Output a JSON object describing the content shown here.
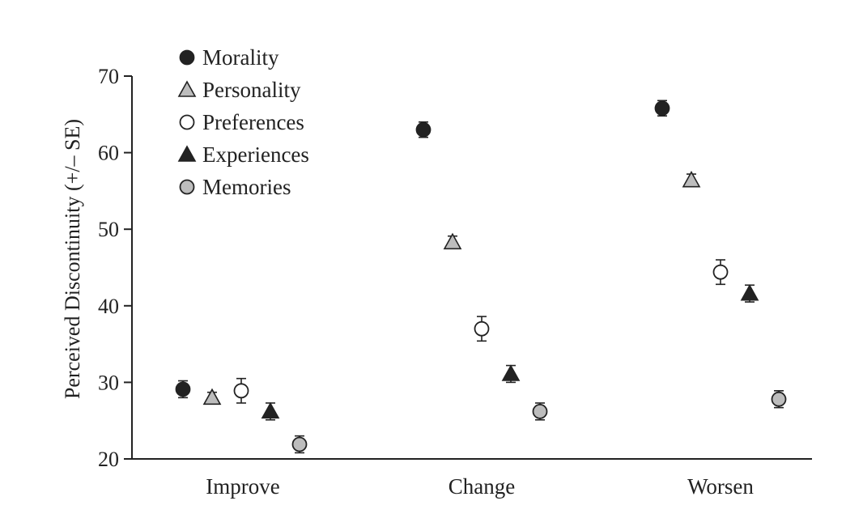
{
  "chart_data": {
    "type": "scatter",
    "title": "",
    "ylabel": "Perceived Discontinuity (+/– SE)",
    "xlabel": "",
    "ylim": [
      20,
      70
    ],
    "yticks": [
      20,
      30,
      40,
      50,
      60,
      70
    ],
    "categories": [
      "Improve",
      "Change",
      "Worsen"
    ],
    "grid": false,
    "legend_position": "top-left",
    "series": [
      {
        "name": "Morality",
        "marker": "circle",
        "fill": "#222222",
        "values": [
          29.1,
          63.0,
          65.8
        ],
        "se": [
          1.1,
          1.0,
          1.0
        ]
      },
      {
        "name": "Personality",
        "marker": "triangle",
        "fill": "#bdbdbd",
        "values": [
          28.0,
          48.3,
          56.4
        ],
        "se": [
          0.7,
          0.8,
          0.8
        ]
      },
      {
        "name": "Preferences",
        "marker": "circle",
        "fill": "#ffffff",
        "values": [
          28.9,
          37.0,
          44.4
        ],
        "se": [
          1.6,
          1.6,
          1.6
        ]
      },
      {
        "name": "Experiences",
        "marker": "triangle",
        "fill": "#222222",
        "values": [
          26.2,
          31.1,
          41.6
        ],
        "se": [
          1.1,
          1.1,
          1.1
        ]
      },
      {
        "name": "Memories",
        "marker": "circle",
        "fill": "#bdbdbd",
        "values": [
          21.9,
          26.2,
          27.8
        ],
        "se": [
          1.1,
          1.1,
          1.1
        ]
      }
    ]
  }
}
